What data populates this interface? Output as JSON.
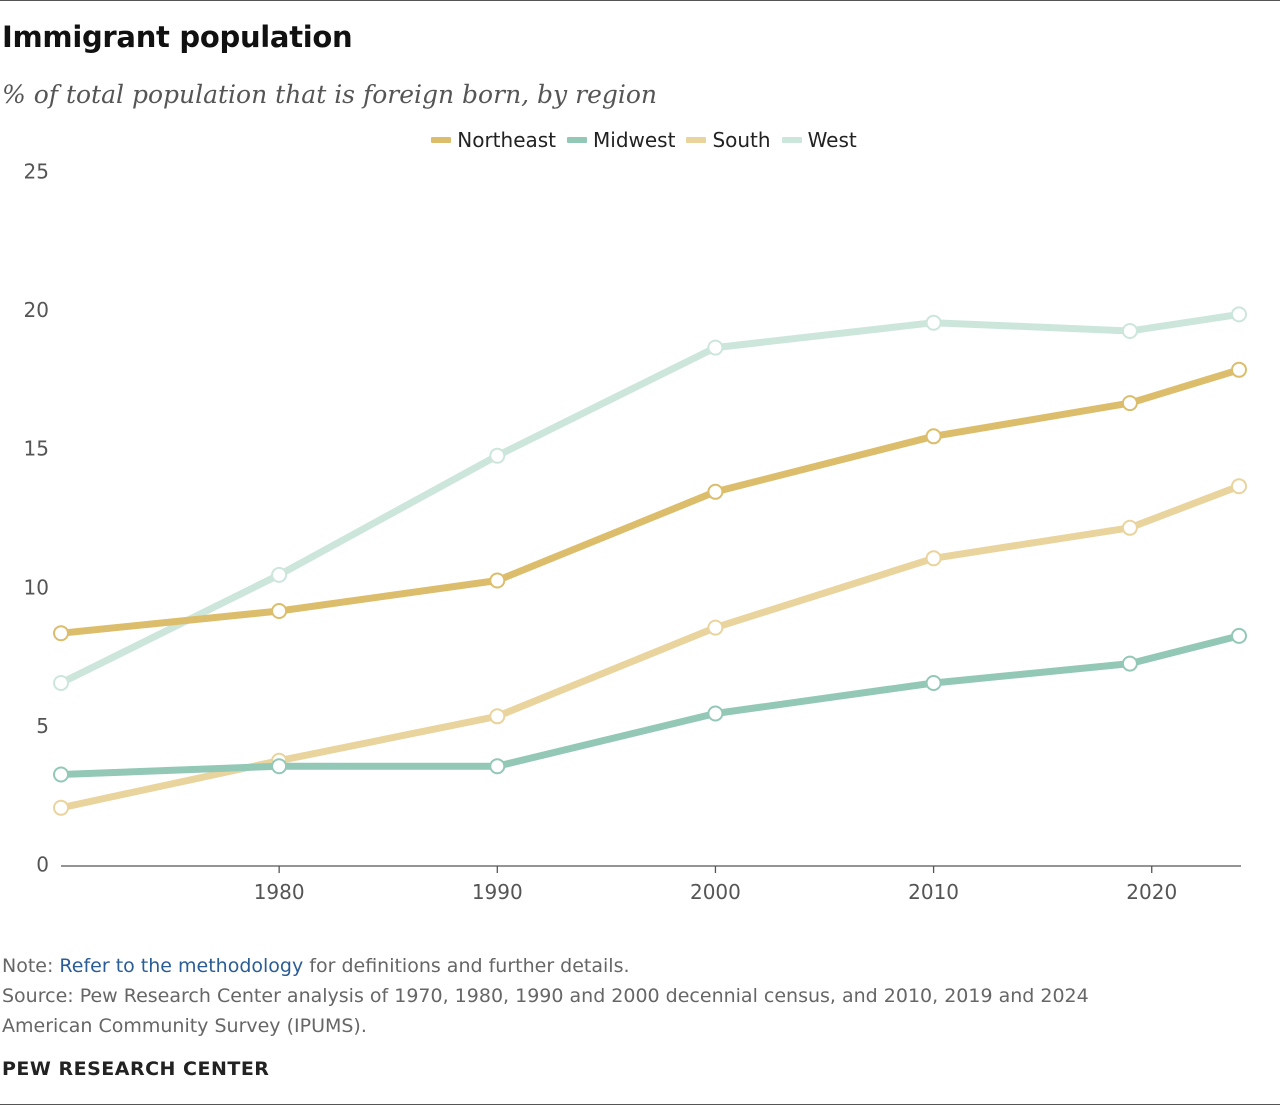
{
  "title": "Immigrant population",
  "subtitle": "% of total population that is foreign born, by region",
  "note": {
    "prefix": "Note: ",
    "link_text": "Refer to the methodology",
    "suffix": " for definitions and further details."
  },
  "source_line1": "Source: Pew Research Center analysis of 1970, 1980, 1990 and 2000 decennial census, and 2010, 2019 and 2024",
  "source_line2": "American Community Survey (IPUMS).",
  "brand": "PEW RESEARCH CENTER",
  "colors": {
    "northeast": "#dcbd6b",
    "midwest": "#93c8b6",
    "south": "#ead49e",
    "west": "#cce6dc",
    "axis": "#555555"
  },
  "chart_data": {
    "type": "line",
    "title": "Immigrant population",
    "subtitle": "% of total population that is foreign born, by region",
    "xlabel": "",
    "ylabel": "",
    "x": [
      1970,
      1980,
      1990,
      2000,
      2010,
      2019,
      2024
    ],
    "x_ticks": [
      "1980",
      "1990",
      "2000",
      "2010",
      "2020"
    ],
    "x_tick_values": [
      1980,
      1990,
      2000,
      2010,
      2020
    ],
    "y_ticks": [
      "0",
      "5",
      "10",
      "15",
      "20",
      "25"
    ],
    "y_tick_values": [
      0,
      5,
      10,
      15,
      20,
      25
    ],
    "xlim": [
      1970,
      2024
    ],
    "ylim": [
      0,
      25
    ],
    "grid": false,
    "legend_position": "top-center",
    "series": [
      {
        "name": "Northeast",
        "key": "northeast",
        "values": [
          8.4,
          9.2,
          10.3,
          13.5,
          15.5,
          16.7,
          17.9
        ]
      },
      {
        "name": "Midwest",
        "key": "midwest",
        "values": [
          3.3,
          3.6,
          3.6,
          5.5,
          6.6,
          7.3,
          8.3
        ]
      },
      {
        "name": "South",
        "key": "south",
        "values": [
          2.1,
          3.8,
          5.4,
          8.6,
          11.1,
          12.2,
          13.7
        ]
      },
      {
        "name": "West",
        "key": "west",
        "values": [
          6.6,
          10.5,
          14.8,
          18.7,
          19.6,
          19.3,
          19.9
        ]
      }
    ]
  }
}
